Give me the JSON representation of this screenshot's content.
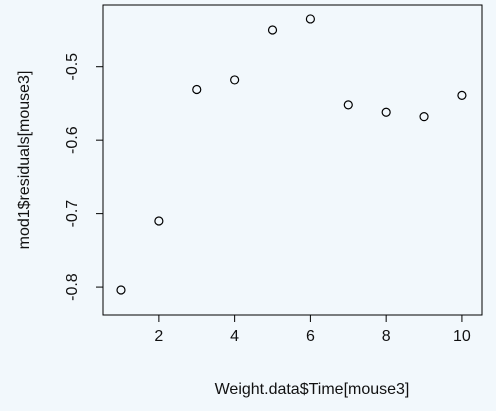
{
  "chart_data": {
    "type": "scatter",
    "x_label": "Weight.data$Time[mouse3]",
    "y_label": "mod1$residuals[mouse3]",
    "x": [
      1,
      2,
      3,
      4,
      5,
      6,
      7,
      8,
      9,
      10
    ],
    "values": [
      -0.804,
      -0.71,
      -0.531,
      -0.518,
      -0.45,
      -0.435,
      -0.552,
      -0.562,
      -0.568,
      -0.539
    ],
    "color": "#000000",
    "xlim": [
      0.525,
      10.53
    ],
    "ylim": [
      -0.838,
      -0.416
    ],
    "xticks": [
      2,
      4,
      6,
      8,
      10
    ],
    "yticks": [
      -0.8,
      -0.7,
      -0.6,
      -0.5
    ]
  }
}
